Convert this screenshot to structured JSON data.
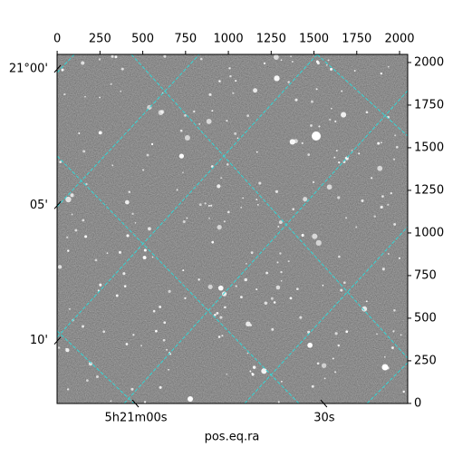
{
  "chart_data": {
    "type": "image",
    "xlabel": "pos.eq.ra",
    "xlim": [
      -0.5,
      2047.5
    ],
    "ylim": [
      -0.5,
      2047.5
    ],
    "xticks": [
      0,
      250,
      500,
      750,
      1000,
      1250,
      1500,
      1750,
      2000
    ],
    "yticks": [
      0,
      250,
      500,
      750,
      1000,
      1250,
      1500,
      1750,
      2000
    ],
    "ra_ticks": [
      {
        "value": 460,
        "label": "5h21m00s"
      },
      {
        "value": 1560,
        "label": "30s"
      }
    ],
    "dec_ticks": [
      {
        "value": 1963,
        "label": "21°00'"
      },
      {
        "value": 1163,
        "label": "05'"
      },
      {
        "value": 368,
        "label": "10'"
      }
    ],
    "grid_color": "#33d6d6"
  }
}
